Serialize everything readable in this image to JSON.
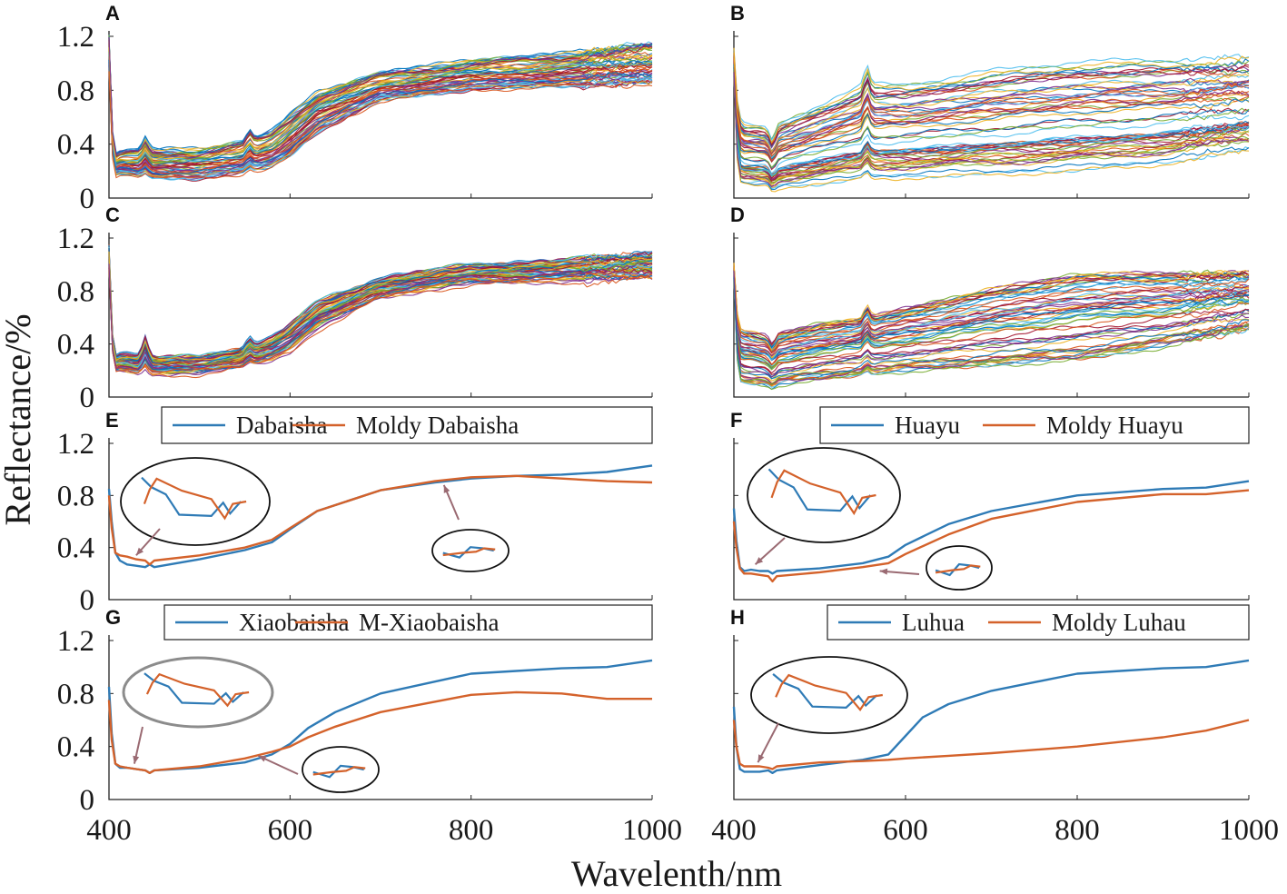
{
  "figure": {
    "ylabel": "Reflectance/%",
    "xlabel": "Wavelenth/nm"
  },
  "colors": {
    "blue": "#2f7bb6",
    "orange": "#d4622b",
    "arrow": "#9a6a72",
    "zoom_ellipse": "#111111",
    "zoom_ellipse_gray": "#8c8c8c",
    "spaghetti_palette": [
      "#0072BD",
      "#D95319",
      "#EDB120",
      "#7E2F8E",
      "#77AC30",
      "#4DBEEE",
      "#A2142F"
    ]
  },
  "chart_data": [
    {
      "panel": "A",
      "type": "line",
      "mode": "spectra",
      "n_lines": 60,
      "xlim": [
        400,
        1000
      ],
      "ylim": [
        0,
        1.2
      ],
      "yticks": [
        "0",
        "0.4",
        "0.8",
        "1.2"
      ],
      "xticks": [],
      "envelope": {
        "x": [
          400,
          405,
          410,
          430,
          445,
          500,
          550,
          580,
          600,
          630,
          700,
          800,
          900,
          1000
        ],
        "low": [
          0.95,
          0.15,
          0.18,
          0.16,
          0.14,
          0.14,
          0.18,
          0.22,
          0.3,
          0.48,
          0.72,
          0.8,
          0.82,
          0.84
        ],
        "high": [
          1.2,
          0.3,
          0.34,
          0.36,
          0.36,
          0.36,
          0.42,
          0.5,
          0.62,
          0.78,
          0.93,
          1.02,
          1.07,
          1.15
        ]
      },
      "features": [
        {
          "x": 440,
          "dy": 0.06
        },
        {
          "x": 555,
          "dy": 0.05
        }
      ]
    },
    {
      "panel": "B",
      "type": "line",
      "mode": "spectra",
      "n_lines": 60,
      "xlim": [
        400,
        1000
      ],
      "ylim": [
        0,
        1.2
      ],
      "yticks": [],
      "xticks": [],
      "envelope": {
        "x": [
          400,
          405,
          410,
          440,
          450,
          500,
          555,
          600,
          700,
          800,
          900,
          1000
        ],
        "low": [
          0.9,
          0.12,
          0.1,
          0.1,
          0.08,
          0.1,
          0.14,
          0.15,
          0.17,
          0.2,
          0.25,
          0.35
        ],
        "high": [
          1.1,
          0.62,
          0.55,
          0.52,
          0.55,
          0.7,
          0.85,
          0.85,
          0.95,
          1.02,
          1.03,
          1.05
        ]
      },
      "features": [
        {
          "x": 445,
          "dy": -0.07
        },
        {
          "x": 555,
          "dy": 0.09
        }
      ]
    },
    {
      "panel": "C",
      "type": "line",
      "mode": "spectra",
      "n_lines": 60,
      "xlim": [
        400,
        1000
      ],
      "ylim": [
        0,
        1.2
      ],
      "yticks": [
        "0",
        "0.4",
        "0.8",
        "1.2"
      ],
      "xticks": [],
      "envelope": {
        "x": [
          400,
          405,
          410,
          430,
          445,
          500,
          550,
          580,
          600,
          630,
          700,
          800,
          900,
          1000
        ],
        "low": [
          0.95,
          0.18,
          0.2,
          0.17,
          0.16,
          0.17,
          0.22,
          0.27,
          0.33,
          0.5,
          0.74,
          0.85,
          0.86,
          0.88
        ],
        "high": [
          1.15,
          0.3,
          0.33,
          0.32,
          0.3,
          0.3,
          0.38,
          0.45,
          0.55,
          0.72,
          0.9,
          1.0,
          1.03,
          1.1
        ]
      },
      "features": [
        {
          "x": 440,
          "dy": 0.1
        },
        {
          "x": 555,
          "dy": 0.04
        }
      ]
    },
    {
      "panel": "D",
      "type": "line",
      "mode": "spectra",
      "n_lines": 60,
      "xlim": [
        400,
        1000
      ],
      "ylim": [
        0,
        1.2
      ],
      "yticks": [],
      "xticks": [],
      "envelope": {
        "x": [
          400,
          405,
          410,
          440,
          450,
          500,
          555,
          600,
          700,
          800,
          900,
          1000
        ],
        "low": [
          0.9,
          0.12,
          0.1,
          0.08,
          0.08,
          0.12,
          0.16,
          0.18,
          0.22,
          0.26,
          0.36,
          0.5
        ],
        "high": [
          1.0,
          0.55,
          0.52,
          0.48,
          0.5,
          0.58,
          0.62,
          0.7,
          0.85,
          0.97,
          0.97,
          0.97
        ]
      },
      "features": [
        {
          "x": 445,
          "dy": -0.05
        },
        {
          "x": 555,
          "dy": 0.06
        }
      ]
    },
    {
      "panel": "E",
      "type": "line",
      "mode": "pair",
      "xlim": [
        400,
        1000
      ],
      "ylim": [
        0,
        1.2
      ],
      "yticks": [
        "0",
        "0.4",
        "0.8",
        "1.2"
      ],
      "xticks": [],
      "legend": [
        "Dabaisha",
        "Moldy Dabaisha"
      ],
      "series": [
        {
          "name": "Dabaisha",
          "color": "blue",
          "x": [
            400,
            403,
            407,
            412,
            420,
            430,
            440,
            445,
            450,
            500,
            550,
            580,
            600,
            630,
            700,
            760,
            800,
            850,
            900,
            950,
            1000
          ],
          "y": [
            0.85,
            0.6,
            0.36,
            0.3,
            0.27,
            0.26,
            0.25,
            0.27,
            0.25,
            0.31,
            0.38,
            0.44,
            0.54,
            0.68,
            0.84,
            0.9,
            0.93,
            0.95,
            0.96,
            0.98,
            1.03
          ]
        },
        {
          "name": "Moldy Dabaisha",
          "color": "orange",
          "x": [
            400,
            403,
            407,
            412,
            420,
            430,
            440,
            445,
            450,
            500,
            550,
            580,
            600,
            630,
            700,
            760,
            800,
            850,
            900,
            950,
            1000
          ],
          "y": [
            0.8,
            0.55,
            0.36,
            0.34,
            0.33,
            0.31,
            0.3,
            0.27,
            0.3,
            0.34,
            0.4,
            0.46,
            0.55,
            0.68,
            0.84,
            0.91,
            0.94,
            0.95,
            0.93,
            0.91,
            0.9
          ]
        }
      ],
      "zooms": [
        {
          "kind": "large",
          "ring": "black",
          "arrow_to": [
            430,
            0.34
          ]
        },
        {
          "kind": "small",
          "ring": "black",
          "arrow_to": [
            770,
            0.88
          ]
        }
      ]
    },
    {
      "panel": "F",
      "type": "line",
      "mode": "pair",
      "xlim": [
        400,
        1000
      ],
      "ylim": [
        0,
        1.2
      ],
      "yticks": [],
      "xticks": [],
      "legend": [
        "Huayu",
        "Moldy Huayu"
      ],
      "series": [
        {
          "name": "Huayu",
          "color": "blue",
          "x": [
            400,
            403,
            407,
            412,
            420,
            430,
            440,
            445,
            450,
            500,
            550,
            580,
            600,
            650,
            700,
            800,
            900,
            950,
            1000
          ],
          "y": [
            0.7,
            0.45,
            0.25,
            0.22,
            0.23,
            0.22,
            0.22,
            0.2,
            0.22,
            0.24,
            0.28,
            0.33,
            0.42,
            0.58,
            0.68,
            0.8,
            0.85,
            0.86,
            0.91
          ]
        },
        {
          "name": "Moldy Huayu",
          "color": "orange",
          "x": [
            400,
            403,
            407,
            412,
            420,
            430,
            440,
            445,
            450,
            500,
            550,
            580,
            600,
            650,
            700,
            800,
            900,
            950,
            1000
          ],
          "y": [
            0.6,
            0.4,
            0.24,
            0.2,
            0.2,
            0.19,
            0.18,
            0.14,
            0.18,
            0.21,
            0.25,
            0.28,
            0.35,
            0.5,
            0.62,
            0.75,
            0.81,
            0.81,
            0.84
          ]
        }
      ],
      "zooms": [
        {
          "kind": "large",
          "ring": "black",
          "arrow_to": [
            425,
            0.27
          ]
        },
        {
          "kind": "small",
          "ring": "black",
          "arrow_to": [
            570,
            0.22
          ]
        }
      ]
    },
    {
      "panel": "G",
      "type": "line",
      "mode": "pair",
      "xlim": [
        400,
        1000
      ],
      "ylim": [
        0,
        1.2
      ],
      "yticks": [
        "0",
        "0.4",
        "0.8",
        "1.2"
      ],
      "xticks": [
        "400",
        "600",
        "800",
        "1000"
      ],
      "legend": [
        "Xiaobaisha",
        "M-Xiaobaisha"
      ],
      "series": [
        {
          "name": "Xiaobaisha",
          "color": "blue",
          "x": [
            400,
            403,
            407,
            412,
            420,
            430,
            440,
            445,
            450,
            500,
            550,
            580,
            600,
            620,
            650,
            700,
            800,
            850,
            900,
            950,
            1000
          ],
          "y": [
            0.85,
            0.5,
            0.27,
            0.24,
            0.24,
            0.23,
            0.22,
            0.2,
            0.22,
            0.24,
            0.28,
            0.34,
            0.42,
            0.54,
            0.66,
            0.8,
            0.95,
            0.97,
            0.99,
            1.0,
            1.05
          ]
        },
        {
          "name": "M-Xiaobaisha",
          "color": "orange",
          "x": [
            400,
            403,
            407,
            412,
            420,
            430,
            440,
            445,
            450,
            500,
            550,
            580,
            600,
            620,
            650,
            700,
            800,
            850,
            900,
            950,
            1000
          ],
          "y": [
            0.75,
            0.45,
            0.27,
            0.25,
            0.24,
            0.23,
            0.22,
            0.2,
            0.22,
            0.25,
            0.31,
            0.36,
            0.4,
            0.47,
            0.55,
            0.66,
            0.79,
            0.81,
            0.8,
            0.76,
            0.76
          ]
        }
      ],
      "zooms": [
        {
          "kind": "large",
          "ring": "gray",
          "arrow_to": [
            428,
            0.27
          ]
        },
        {
          "kind": "small",
          "ring": "black",
          "arrow_to": [
            565,
            0.33
          ]
        }
      ]
    },
    {
      "panel": "H",
      "type": "line",
      "mode": "pair",
      "xlim": [
        400,
        1000
      ],
      "ylim": [
        0,
        1.2
      ],
      "yticks": [],
      "xticks": [
        "400",
        "600",
        "800",
        "1000"
      ],
      "legend": [
        "Luhua",
        "Moldy Luhau"
      ],
      "series": [
        {
          "name": "Luhua",
          "color": "blue",
          "x": [
            400,
            403,
            407,
            412,
            420,
            430,
            440,
            445,
            450,
            500,
            550,
            580,
            600,
            620,
            650,
            700,
            800,
            850,
            900,
            950,
            1000
          ],
          "y": [
            0.7,
            0.4,
            0.23,
            0.21,
            0.21,
            0.21,
            0.22,
            0.2,
            0.22,
            0.26,
            0.3,
            0.34,
            0.48,
            0.62,
            0.72,
            0.82,
            0.95,
            0.97,
            0.99,
            1.0,
            1.05
          ]
        },
        {
          "name": "Moldy Luhau",
          "color": "orange",
          "x": [
            400,
            403,
            407,
            412,
            420,
            430,
            440,
            445,
            450,
            500,
            550,
            580,
            600,
            650,
            700,
            800,
            900,
            950,
            1000
          ],
          "y": [
            0.6,
            0.4,
            0.27,
            0.25,
            0.25,
            0.25,
            0.24,
            0.23,
            0.25,
            0.28,
            0.29,
            0.3,
            0.31,
            0.33,
            0.35,
            0.4,
            0.47,
            0.52,
            0.6
          ]
        }
      ],
      "zooms": [
        {
          "kind": "large",
          "ring": "black",
          "arrow_to": [
            428,
            0.28
          ]
        }
      ]
    }
  ]
}
